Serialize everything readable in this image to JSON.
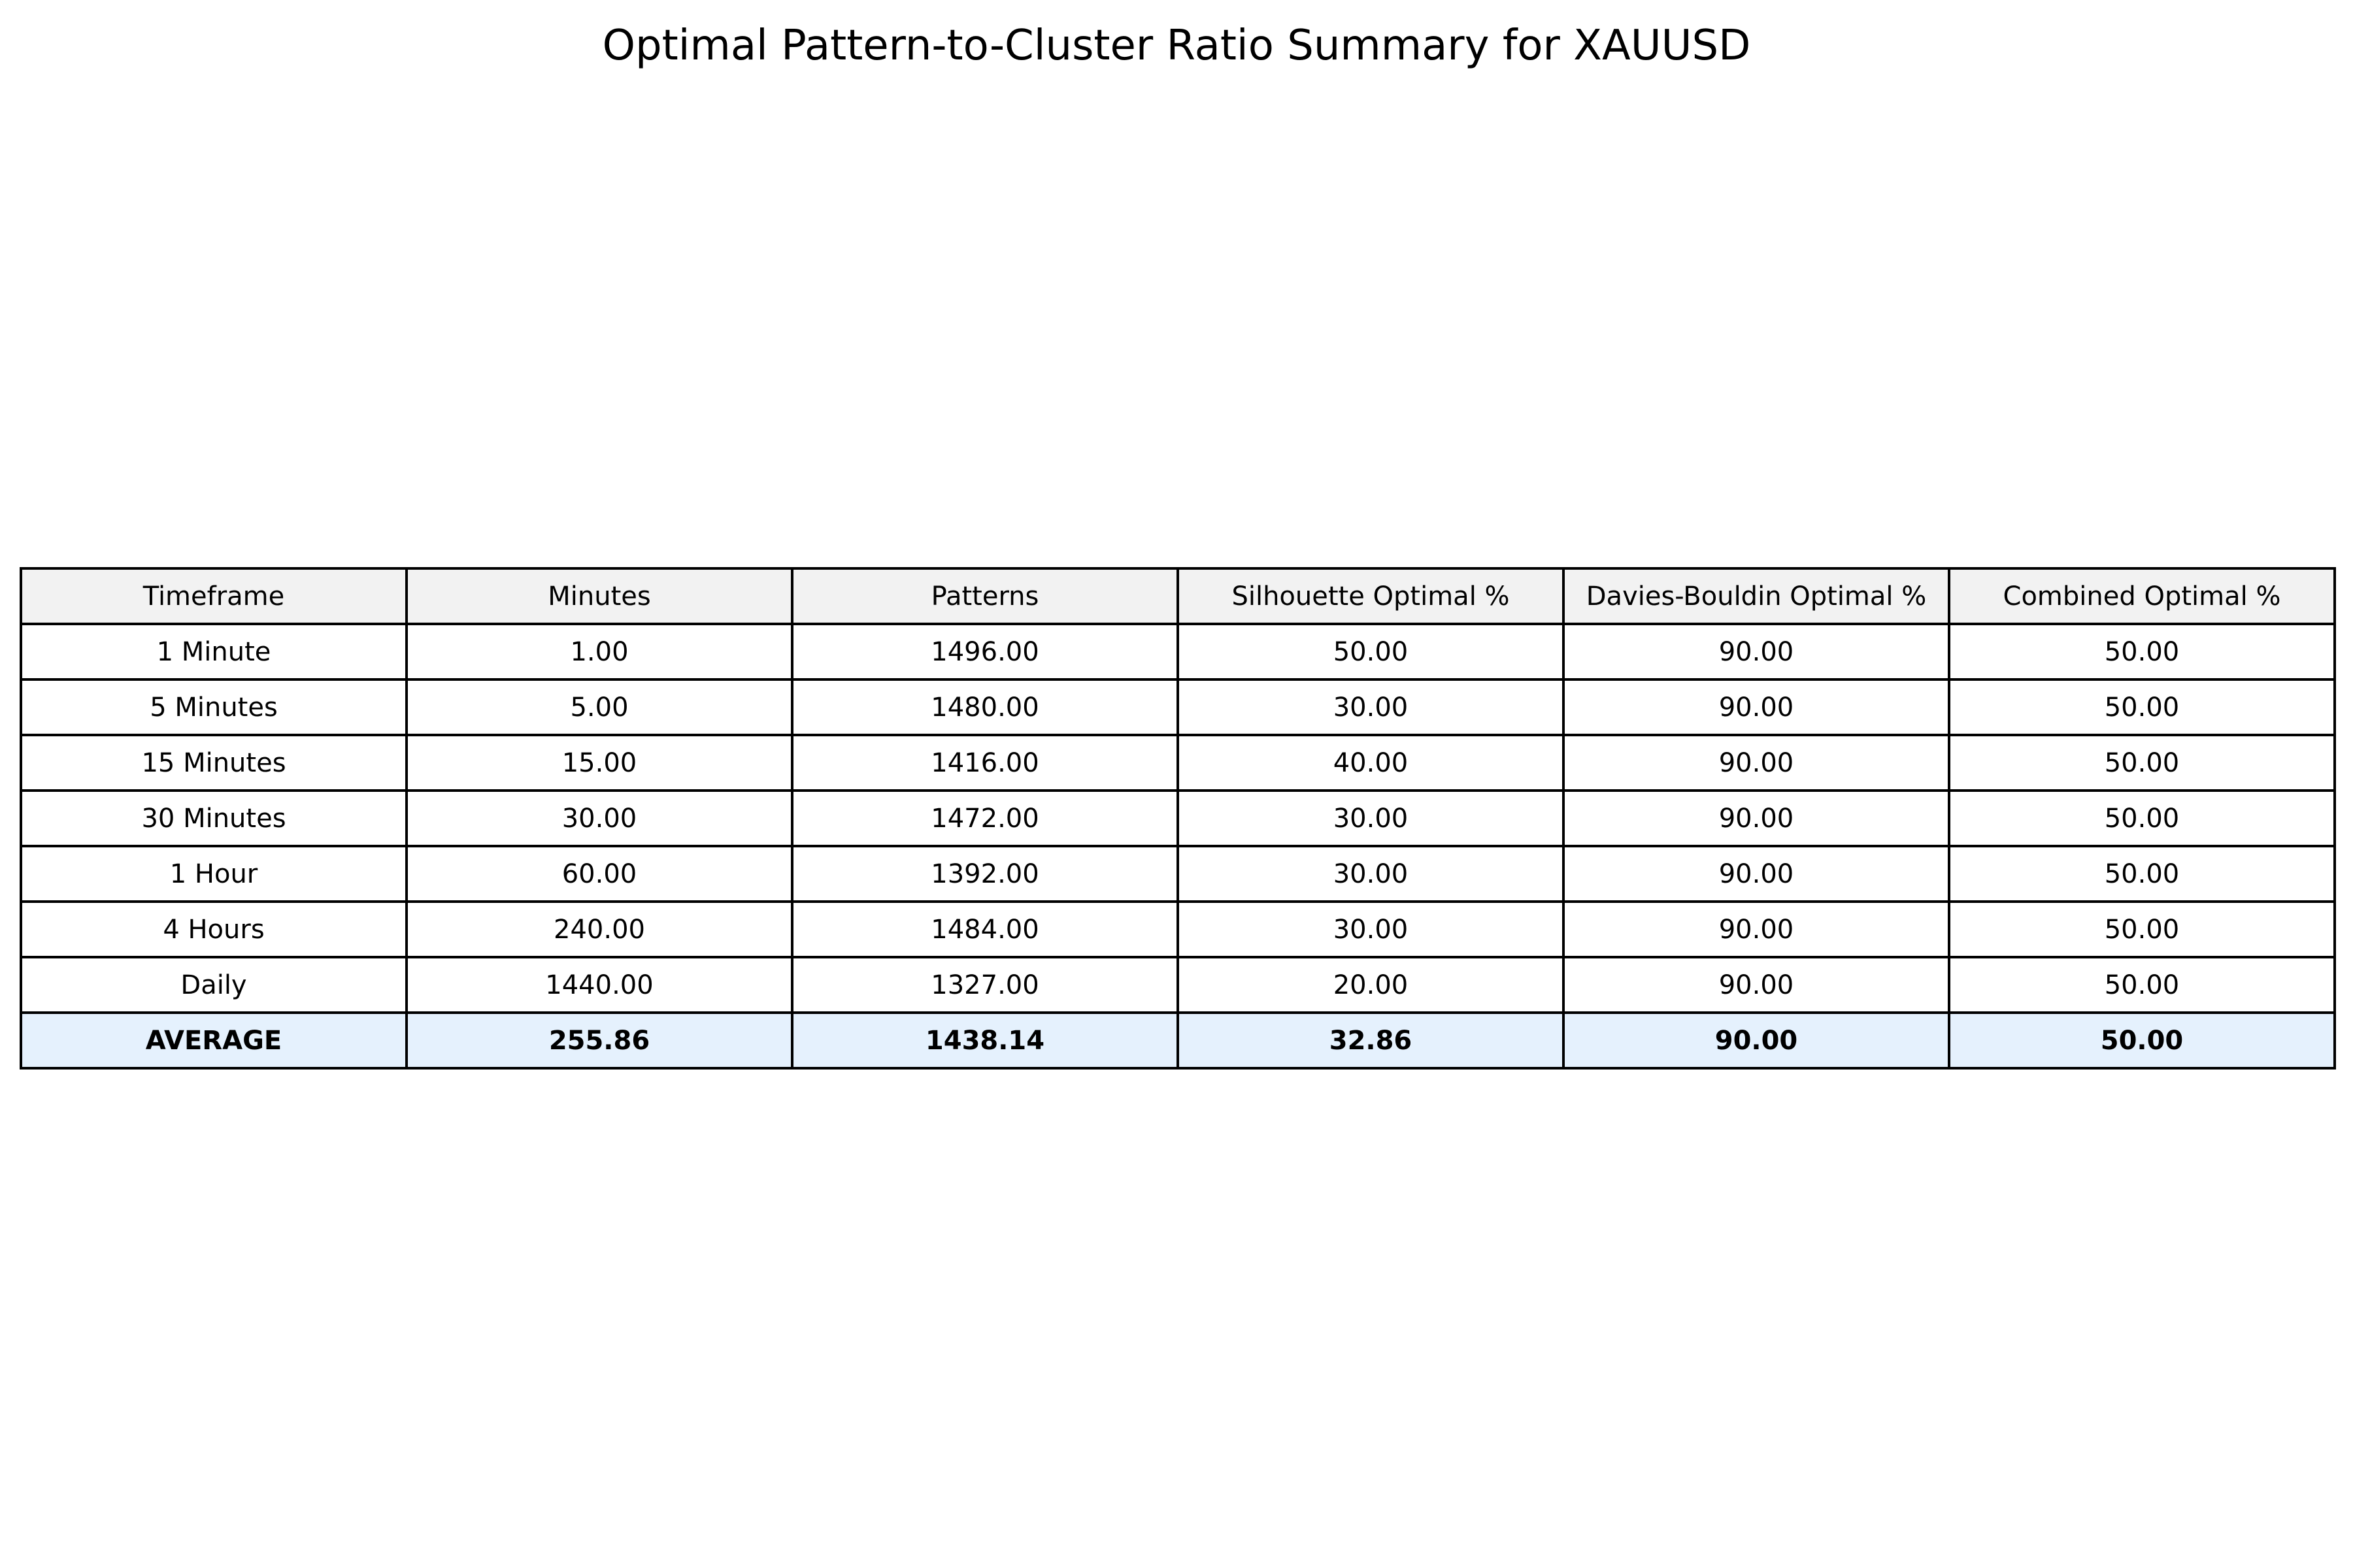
{
  "chart_data": {
    "type": "table",
    "title": "Optimal Pattern-to-Cluster Ratio Summary for XAUUSD",
    "columns": [
      "Timeframe",
      "Minutes",
      "Patterns",
      "Silhouette Optimal %",
      "Davies-Bouldin Optimal %",
      "Combined Optimal %"
    ],
    "rows": [
      [
        "1 Minute",
        "1.00",
        "1496.00",
        "50.00",
        "90.00",
        "50.00"
      ],
      [
        "5 Minutes",
        "5.00",
        "1480.00",
        "30.00",
        "90.00",
        "50.00"
      ],
      [
        "15 Minutes",
        "15.00",
        "1416.00",
        "40.00",
        "90.00",
        "50.00"
      ],
      [
        "30 Minutes",
        "30.00",
        "1472.00",
        "30.00",
        "90.00",
        "50.00"
      ],
      [
        "1 Hour",
        "60.00",
        "1392.00",
        "30.00",
        "90.00",
        "50.00"
      ],
      [
        "4 Hours",
        "240.00",
        "1484.00",
        "30.00",
        "90.00",
        "50.00"
      ],
      [
        "Daily",
        "1440.00",
        "1327.00",
        "20.00",
        "90.00",
        "50.00"
      ]
    ],
    "summary_row": [
      "AVERAGE",
      "255.86",
      "1438.14",
      "32.86",
      "90.00",
      "50.00"
    ],
    "colors": {
      "header_background": "#f2f2f2",
      "summary_background": "#e5f1fd",
      "border": "#000000"
    }
  }
}
